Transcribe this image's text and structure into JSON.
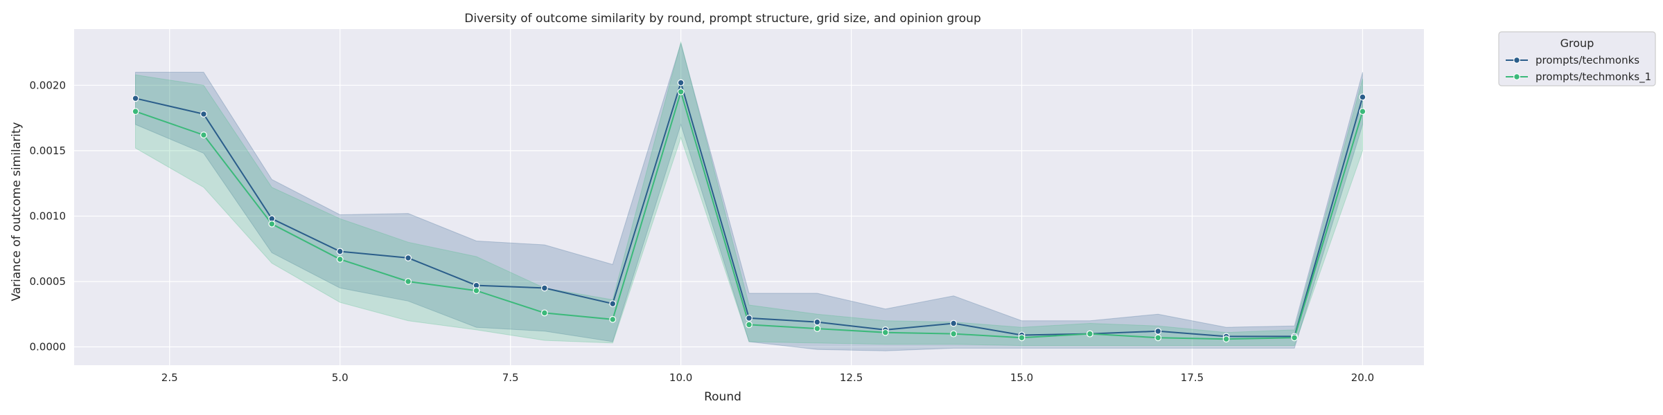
{
  "chart_data": {
    "type": "line",
    "title": "Diversity of outcome similarity by round, prompt structure, grid size, and opinion group",
    "xlabel": "Round",
    "ylabel": "Variance of outcome similarity",
    "xlim": [
      1.1,
      20.9
    ],
    "ylim": [
      -0.00014,
      0.00243
    ],
    "xticks": [
      2.5,
      5.0,
      7.5,
      10.0,
      12.5,
      15.0,
      17.5,
      20.0
    ],
    "xtick_labels": [
      "2.5",
      "5.0",
      "7.5",
      "10.0",
      "12.5",
      "15.0",
      "17.5",
      "20.0"
    ],
    "yticks": [
      0,
      0.0005,
      0.001,
      0.0015,
      0.002
    ],
    "ytick_labels": [
      "0.0000",
      "0.0005",
      "0.0010",
      "0.0015",
      "0.0020"
    ],
    "grid": true,
    "legend": {
      "title": "Group",
      "position": "top-right-outside"
    },
    "x": [
      2,
      3,
      4,
      5,
      6,
      7,
      8,
      9,
      10,
      11,
      12,
      13,
      14,
      15,
      16,
      17,
      18,
      19,
      20
    ],
    "series": [
      {
        "name": "prompts/techmonks",
        "color": "#2a5d8a",
        "values": [
          0.0019,
          0.00178,
          0.00098,
          0.00073,
          0.00068,
          0.00047,
          0.00045,
          0.00033,
          0.00202,
          0.00022,
          0.00019,
          0.00013,
          0.00018,
          9e-05,
          0.0001,
          0.00012,
          8e-05,
          8e-05,
          0.00191
        ],
        "ci_lower": [
          0.0017,
          0.00148,
          0.00072,
          0.00045,
          0.00035,
          0.00015,
          0.00012,
          4e-05,
          0.0017,
          4e-05,
          -2e-05,
          -3e-05,
          -1e-05,
          -1e-05,
          -1e-05,
          -1e-05,
          -1e-05,
          -1e-05,
          0.0017
        ],
        "ci_upper": [
          0.0021,
          0.0021,
          0.00128,
          0.00101,
          0.00102,
          0.00081,
          0.00078,
          0.00063,
          0.00232,
          0.00041,
          0.00041,
          0.00029,
          0.00039,
          0.0002,
          0.0002,
          0.00025,
          0.00015,
          0.00016,
          0.0021
        ]
      },
      {
        "name": "prompts/techmonks_1",
        "color": "#3bb97a",
        "values": [
          0.0018,
          0.00162,
          0.00094,
          0.00067,
          0.0005,
          0.00043,
          0.00026,
          0.00021,
          0.00195,
          0.00017,
          0.00014,
          0.00011,
          0.0001,
          7e-05,
          0.0001,
          7e-05,
          6e-05,
          7e-05,
          0.0018
        ],
        "ci_lower": [
          0.00152,
          0.00122,
          0.00064,
          0.00034,
          0.0002,
          0.00013,
          5e-05,
          3e-05,
          0.0016,
          4e-05,
          3e-05,
          2e-05,
          2e-05,
          1e-05,
          1e-05,
          1e-05,
          1e-05,
          1e-05,
          0.0015
        ],
        "ci_upper": [
          0.00208,
          0.002,
          0.00122,
          0.00098,
          0.0008,
          0.00069,
          0.00045,
          0.00036,
          0.00233,
          0.00032,
          0.00025,
          0.0002,
          0.00019,
          0.00015,
          0.00018,
          0.00016,
          0.00011,
          0.00013,
          0.00205
        ]
      }
    ]
  }
}
